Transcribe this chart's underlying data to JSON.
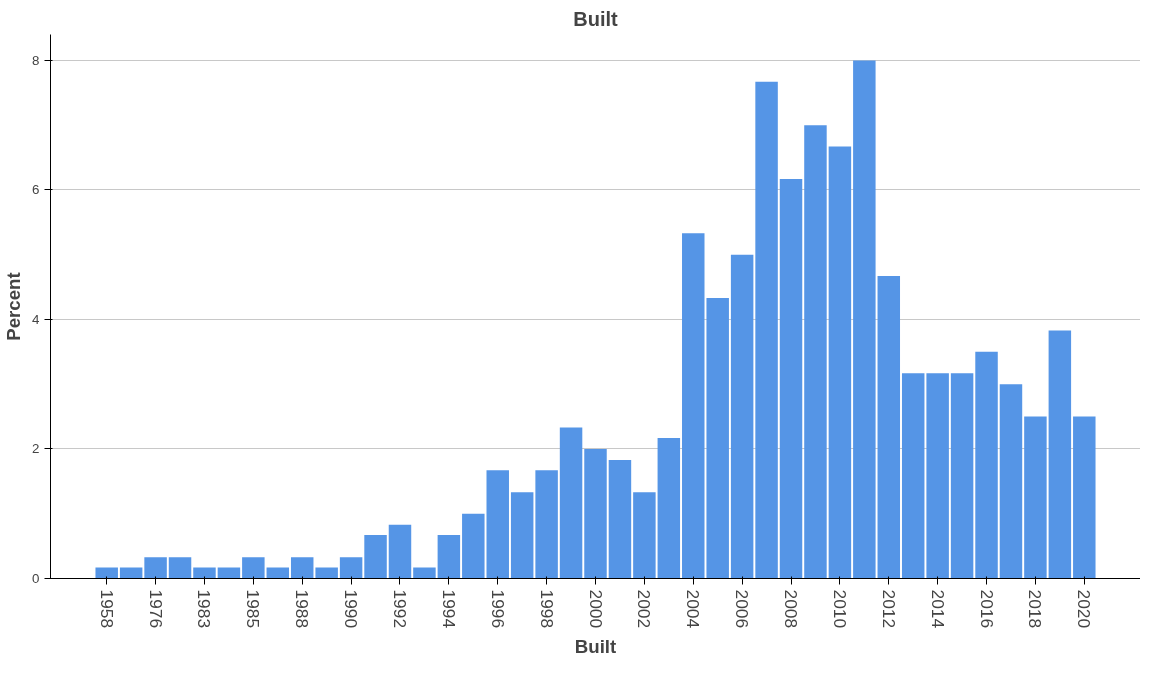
{
  "chart_data": {
    "type": "bar",
    "title": "Built",
    "xlabel": "Built",
    "ylabel": "Percent",
    "categories": [
      "1958",
      null,
      "1976",
      null,
      "1983",
      null,
      "1985",
      null,
      "1988",
      null,
      "1990",
      null,
      "1992",
      null,
      "1994",
      null,
      "1996",
      null,
      "1998",
      null,
      "2000",
      null,
      "2002",
      null,
      "2004",
      null,
      "2006",
      null,
      "2008",
      null,
      "2010",
      null,
      "2012",
      null,
      "2014",
      null,
      "2016",
      null,
      "2018",
      null,
      "2020"
    ],
    "values": [
      0.17,
      0.17,
      0.33,
      0.33,
      0.17,
      0.17,
      0.33,
      0.17,
      0.33,
      0.17,
      0.33,
      0.67,
      0.83,
      0.17,
      0.67,
      1.0,
      1.67,
      1.33,
      1.67,
      2.33,
      2.0,
      1.83,
      1.33,
      2.17,
      5.33,
      4.33,
      5.0,
      7.67,
      6.17,
      7.0,
      6.67,
      8.0,
      4.67,
      3.17,
      3.17,
      3.17,
      3.5,
      3.0,
      2.5,
      3.83,
      2.5
    ],
    "color": "#5595e6",
    "ylim": [
      0,
      8.4
    ],
    "yticks": [
      0,
      2,
      4,
      6,
      8
    ],
    "grid": "y"
  }
}
